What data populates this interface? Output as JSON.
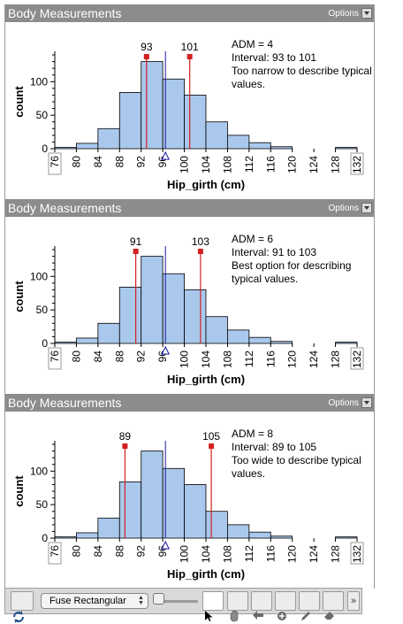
{
  "panels": [
    {
      "title": "Body Measurements",
      "options_label": "Options",
      "annotation": {
        "adm": "ADM = 4",
        "interval": "Interval: 93 to 101",
        "line3": "Too narrow to describe typical",
        "line4": "values."
      },
      "marker_labels": [
        "93",
        "101"
      ]
    },
    {
      "title": "Body Measurements",
      "options_label": "Options",
      "annotation": {
        "adm": "ADM = 6",
        "interval": "Interval: 91 to 103",
        "line3": "Best option for describing",
        "line4": "typical values."
      },
      "marker_labels": [
        "91",
        "103"
      ]
    },
    {
      "title": "Body Measurements",
      "options_label": "Options",
      "annotation": {
        "adm": "ADM = 8",
        "interval": "Interval: 89 to 105",
        "line3": "Too wide to describe typical",
        "line4": "values."
      },
      "marker_labels": [
        "89",
        "105"
      ]
    }
  ],
  "chart_data": [
    {
      "type": "bar",
      "xlabel": "Hip_girth (cm)",
      "ylabel": "count",
      "bin_edges": [
        76,
        80,
        84,
        88,
        92,
        96,
        100,
        104,
        108,
        112,
        116,
        120,
        124,
        128,
        132
      ],
      "values": [
        2,
        8,
        30,
        84,
        130,
        104,
        80,
        40,
        20,
        9,
        3,
        0,
        0,
        2
      ],
      "xticks": [
        "76",
        "80",
        "84",
        "88",
        "92",
        "96",
        "100",
        "104",
        "108",
        "112",
        "116",
        "120",
        "124",
        "128",
        "132"
      ],
      "yticks": [
        "0",
        "50",
        "100"
      ],
      "xlim": [
        76,
        132
      ],
      "ylim": [
        0,
        140
      ],
      "mean": 96.5,
      "interval": [
        93,
        101
      ]
    },
    {
      "type": "bar",
      "xlabel": "Hip_girth (cm)",
      "ylabel": "count",
      "bin_edges": [
        76,
        80,
        84,
        88,
        92,
        96,
        100,
        104,
        108,
        112,
        116,
        120,
        124,
        128,
        132
      ],
      "values": [
        2,
        8,
        30,
        84,
        130,
        104,
        80,
        40,
        20,
        9,
        3,
        0,
        0,
        2
      ],
      "xticks": [
        "76",
        "80",
        "84",
        "88",
        "92",
        "96",
        "100",
        "104",
        "108",
        "112",
        "116",
        "120",
        "124",
        "128",
        "132"
      ],
      "yticks": [
        "0",
        "50",
        "100"
      ],
      "xlim": [
        76,
        132
      ],
      "ylim": [
        0,
        140
      ],
      "mean": 96.5,
      "interval": [
        91,
        103
      ]
    },
    {
      "type": "bar",
      "xlabel": "Hip_girth (cm)",
      "ylabel": "count",
      "bin_edges": [
        76,
        80,
        84,
        88,
        92,
        96,
        100,
        104,
        108,
        112,
        116,
        120,
        124,
        128,
        132
      ],
      "values": [
        2,
        8,
        30,
        84,
        130,
        104,
        80,
        40,
        20,
        9,
        3,
        0,
        0,
        2
      ],
      "xticks": [
        "76",
        "80",
        "84",
        "88",
        "92",
        "96",
        "100",
        "104",
        "108",
        "112",
        "116",
        "120",
        "124",
        "128",
        "132"
      ],
      "yticks": [
        "0",
        "50",
        "100"
      ],
      "xlim": [
        76,
        132
      ],
      "ylim": [
        0,
        140
      ],
      "mean": 96.5,
      "interval": [
        89,
        105
      ]
    }
  ],
  "toolbar": {
    "fuse_label": "Fuse Rectangular",
    "icons": [
      "rotate-icon",
      "pointer-icon",
      "hand-icon",
      "arrow-icon",
      "plus-icon",
      "pencil-icon",
      "eraser-icon",
      "more-icon"
    ]
  },
  "colors": {
    "bar_fill": "#a9c8ec",
    "interval": "#d42020",
    "mean": "#1a1aa8",
    "title_bar": "#8c8c8c"
  }
}
